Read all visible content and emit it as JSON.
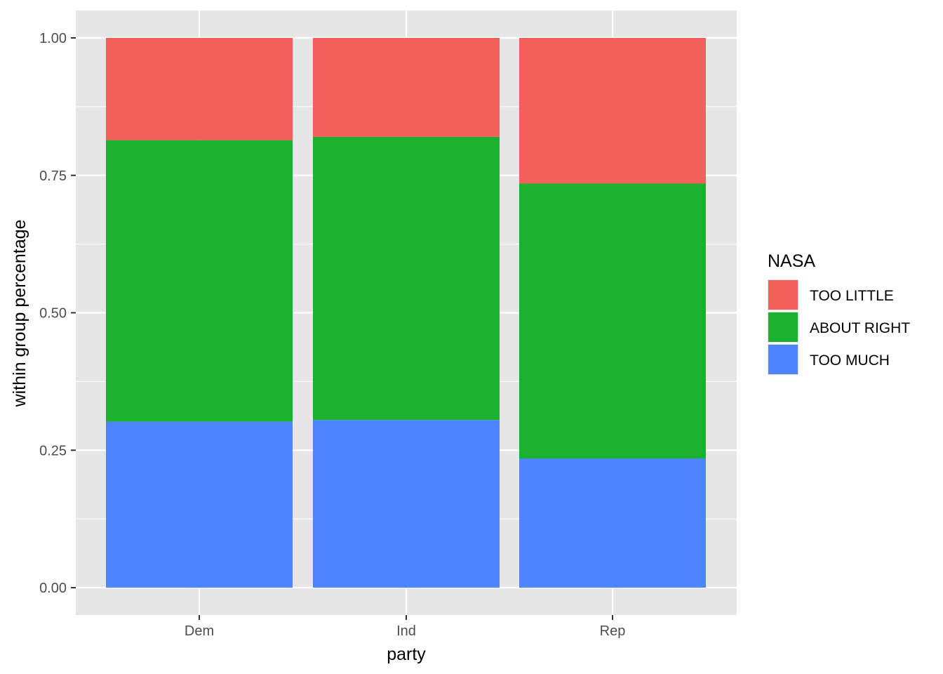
{
  "chart_data": {
    "type": "bar",
    "stacked": true,
    "categories": [
      "Dem",
      "Ind",
      "Rep"
    ],
    "series": [
      {
        "name": "TOO MUCH",
        "color": "#4F84FF",
        "values": [
          0.302,
          0.305,
          0.235
        ]
      },
      {
        "name": "ABOUT RIGHT",
        "color": "#1AB12F",
        "values": [
          0.512,
          0.515,
          0.5
        ]
      },
      {
        "name": "TOO LITTLE",
        "color": "#F3605C",
        "values": [
          0.186,
          0.18,
          0.265
        ]
      }
    ],
    "xlabel": "party",
    "ylabel": "within group percentage",
    "ylim": [
      0,
      1
    ],
    "yticks": [
      0,
      0.25,
      0.5,
      0.75,
      1
    ],
    "ytick_labels": [
      "0.00",
      "0.25",
      "0.50",
      "0.75",
      "1.00"
    ],
    "grid": true,
    "legend": {
      "title": "NASA",
      "position": "right",
      "entries": [
        "TOO LITTLE",
        "ABOUT RIGHT",
        "TOO MUCH"
      ]
    },
    "colors": {
      "panel_background": "#E6E6E6",
      "grid": "#FFFFFF"
    }
  }
}
